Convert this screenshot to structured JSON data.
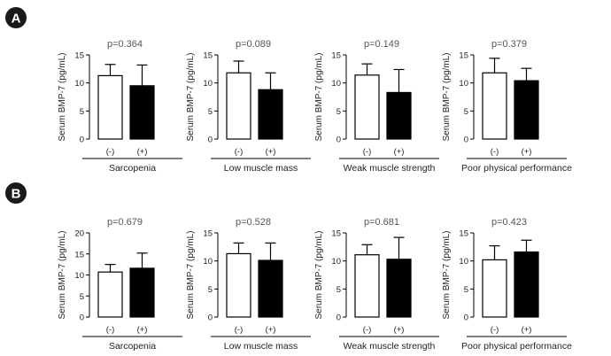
{
  "figure": {
    "panel_labels": [
      "A",
      "B"
    ]
  },
  "chart_data": [
    {
      "panel": "A",
      "type": "bar",
      "title": "p=0.364",
      "ylabel": "Serum BMP-7 (pg/mL)",
      "xlabel": "Sarcopenia",
      "categories": [
        "(-)",
        "(+)"
      ],
      "values": [
        11.3,
        9.5
      ],
      "errors": [
        2.0,
        3.7
      ],
      "ylim": [
        0,
        15
      ],
      "yticks": [
        0,
        5,
        10,
        15
      ],
      "bar_colors": [
        "#ffffff",
        "#000000"
      ]
    },
    {
      "panel": "A",
      "type": "bar",
      "title": "p=0.089",
      "ylabel": "Serum BMP-7 (pg/mL)",
      "xlabel": "Low muscle mass",
      "categories": [
        "(-)",
        "(+)"
      ],
      "values": [
        11.8,
        8.8
      ],
      "errors": [
        2.1,
        3.0
      ],
      "ylim": [
        0,
        15
      ],
      "yticks": [
        0,
        5,
        10,
        15
      ],
      "bar_colors": [
        "#ffffff",
        "#000000"
      ]
    },
    {
      "panel": "A",
      "type": "bar",
      "title": "p=0.149",
      "ylabel": "Serum BMP-7 (pg/mL)",
      "xlabel": "Weak muscle strength",
      "categories": [
        "(-)",
        "(+)"
      ],
      "values": [
        11.4,
        8.3
      ],
      "errors": [
        2.0,
        4.1
      ],
      "ylim": [
        0,
        15
      ],
      "yticks": [
        0,
        5,
        10,
        15
      ],
      "bar_colors": [
        "#ffffff",
        "#000000"
      ]
    },
    {
      "panel": "A",
      "type": "bar",
      "title": "p=0.379",
      "ylabel": "Serum BMP-7 (pg/mL)",
      "xlabel": "Poor physical performance",
      "categories": [
        "(-)",
        "(+)"
      ],
      "values": [
        11.8,
        10.4
      ],
      "errors": [
        2.6,
        2.2
      ],
      "ylim": [
        0,
        15
      ],
      "yticks": [
        0,
        5,
        10,
        15
      ],
      "bar_colors": [
        "#ffffff",
        "#000000"
      ]
    },
    {
      "panel": "B",
      "type": "bar",
      "title": "p=0.679",
      "ylabel": "Serum BMP-7 (pg/mL)",
      "xlabel": "Sarcopenia",
      "categories": [
        "(-)",
        "(+)"
      ],
      "values": [
        10.7,
        11.6
      ],
      "errors": [
        1.8,
        3.6
      ],
      "ylim": [
        0,
        20
      ],
      "yticks": [
        0,
        5,
        10,
        15,
        20
      ],
      "bar_colors": [
        "#ffffff",
        "#000000"
      ]
    },
    {
      "panel": "B",
      "type": "bar",
      "title": "p=0.528",
      "ylabel": "Serum BMP-7 (pg/mL)",
      "xlabel": "Low muscle mass",
      "categories": [
        "(-)",
        "(+)"
      ],
      "values": [
        11.3,
        10.1
      ],
      "errors": [
        1.9,
        3.1
      ],
      "ylim": [
        0,
        15
      ],
      "yticks": [
        0,
        5,
        10,
        15
      ],
      "bar_colors": [
        "#ffffff",
        "#000000"
      ]
    },
    {
      "panel": "B",
      "type": "bar",
      "title": "p=0.681",
      "ylabel": "Serum BMP-7 (pg/mL)",
      "xlabel": "Weak muscle strength",
      "categories": [
        "(-)",
        "(+)"
      ],
      "values": [
        11.1,
        10.3
      ],
      "errors": [
        1.8,
        3.9
      ],
      "ylim": [
        0,
        15
      ],
      "yticks": [
        0,
        5,
        10,
        15
      ],
      "bar_colors": [
        "#ffffff",
        "#000000"
      ]
    },
    {
      "panel": "B",
      "type": "bar",
      "title": "p=0.423",
      "ylabel": "Serum BMP-7 (pg/mL)",
      "xlabel": "Poor physical performance",
      "categories": [
        "(-)",
        "(+)"
      ],
      "values": [
        10.2,
        11.6
      ],
      "errors": [
        2.5,
        2.1
      ],
      "ylim": [
        0,
        15
      ],
      "yticks": [
        0,
        5,
        10,
        15
      ],
      "bar_colors": [
        "#ffffff",
        "#000000"
      ]
    }
  ]
}
